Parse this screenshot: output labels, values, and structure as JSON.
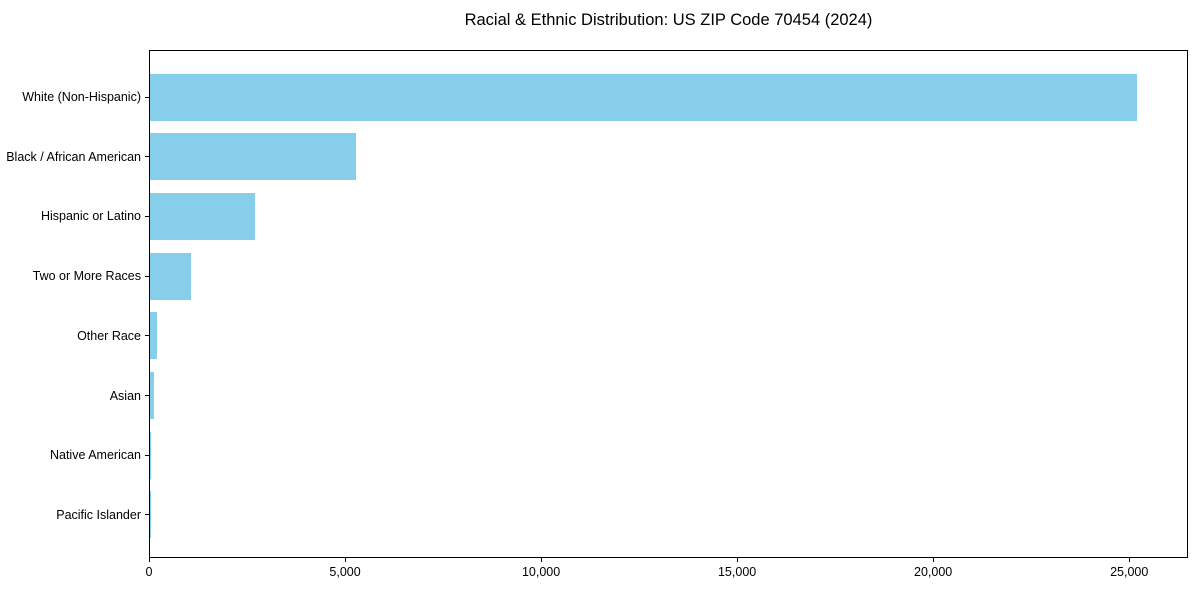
{
  "chart_data": {
    "type": "bar",
    "orientation": "horizontal",
    "title": "Racial & Ethnic Distribution: US ZIP Code 70454 (2024)",
    "categories": [
      "White (Non-Hispanic)",
      "Black / African American",
      "Hispanic or Latino",
      "Two or More Races",
      "Other Race",
      "Asian",
      "Native American",
      "Pacific Islander"
    ],
    "values": [
      25180,
      5250,
      2680,
      1050,
      180,
      110,
      25,
      5
    ],
    "bar_color": "#87CEEB",
    "text_color": "#000000",
    "spine_color": "#000000",
    "xlabel": "",
    "ylabel": "",
    "xlim": [
      0,
      26500
    ],
    "xticks": {
      "values": [
        0,
        5000,
        10000,
        15000,
        20000,
        25000
      ],
      "labels": [
        "0",
        "5,000",
        "10,000",
        "15,000",
        "20,000",
        "25,000"
      ]
    },
    "grid": false,
    "legend": null
  }
}
